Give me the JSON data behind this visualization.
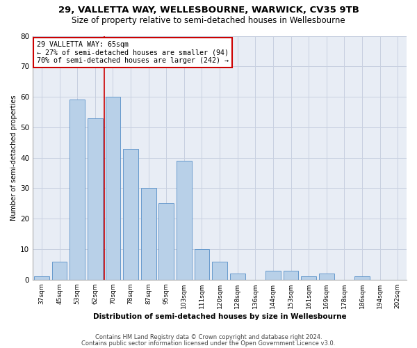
{
  "title1": "29, VALLETTA WAY, WELLESBOURNE, WARWICK, CV35 9TB",
  "title2": "Size of property relative to semi-detached houses in Wellesbourne",
  "xlabel": "Distribution of semi-detached houses by size in Wellesbourne",
  "ylabel": "Number of semi-detached properties",
  "footer1": "Contains HM Land Registry data © Crown copyright and database right 2024.",
  "footer2": "Contains public sector information licensed under the Open Government Licence v3.0.",
  "categories": [
    "37sqm",
    "45sqm",
    "53sqm",
    "62sqm",
    "70sqm",
    "78sqm",
    "87sqm",
    "95sqm",
    "103sqm",
    "111sqm",
    "120sqm",
    "128sqm",
    "136sqm",
    "144sqm",
    "153sqm",
    "161sqm",
    "169sqm",
    "178sqm",
    "186sqm",
    "194sqm",
    "202sqm"
  ],
  "values": [
    1,
    6,
    59,
    53,
    60,
    43,
    30,
    25,
    39,
    10,
    6,
    2,
    0,
    3,
    3,
    1,
    2,
    0,
    1,
    0,
    0
  ],
  "bar_color": "#b8d0e8",
  "bar_edge_color": "#6699cc",
  "vline_x": 3.5,
  "vline_color": "#cc0000",
  "annotation_text": "29 VALLETTA WAY: 65sqm\n← 27% of semi-detached houses are smaller (94)\n70% of semi-detached houses are larger (242) →",
  "annotation_box_color": "#ffffff",
  "annotation_box_edge": "#cc0000",
  "ylim": [
    0,
    80
  ],
  "yticks": [
    0,
    10,
    20,
    30,
    40,
    50,
    60,
    70,
    80
  ],
  "grid_color": "#c8d0e0",
  "bg_color": "#e8edf5",
  "fig_bg_color": "#ffffff",
  "title1_fontsize": 9.5,
  "title2_fontsize": 8.5,
  "bar_width": 0.85
}
